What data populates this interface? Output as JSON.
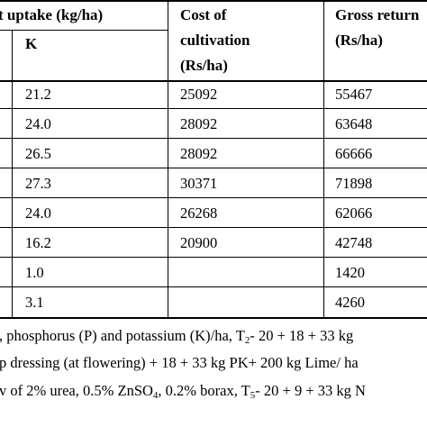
{
  "table": {
    "header": {
      "uptake_title": "t uptake (kg/ha)",
      "k_label": "K",
      "cost_label_1": "Cost of",
      "cost_label_2": "cultivation",
      "cost_label_3": "(Rs/ha)",
      "gross_label_1": "Gross return",
      "gross_label_2": "(Rs/ha)"
    },
    "rows": [
      {
        "k": "21.2",
        "cost": "25092",
        "gross": "55467"
      },
      {
        "k": "24.0",
        "cost": "28092",
        "gross": "63648"
      },
      {
        "k": "26.5",
        "cost": "28092",
        "gross": "66666"
      },
      {
        "k": "27.3",
        "cost": "30371",
        "gross": "71898"
      },
      {
        "k": "24.0",
        "cost": "26268",
        "gross": "62066"
      },
      {
        "k": "16.2",
        "cost": "20900",
        "gross": "42748"
      },
      {
        "k": "1.0",
        "cost": "",
        "gross": "1420"
      },
      {
        "k": "3.1",
        "cost": "",
        "gross": "4260"
      }
    ]
  },
  "footnotes": {
    "line1_a": ", phosphorus (P) and potassium (K)/ha, T",
    "line1_sub": "2",
    "line1_b": "- 20 + 18 + 33 kg",
    "line2": "p dressing (at flowering) + 18 + 33 kg PK+ 200 kg Lime/ ha",
    "line3_a": "v of 2% urea, 0.5% ZnSO",
    "line3_sub1": "4",
    "line3_b": ", 0.2% borax, T",
    "line3_sub2": "5",
    "line3_c": "- 20 + 9 + 33 kg N"
  }
}
